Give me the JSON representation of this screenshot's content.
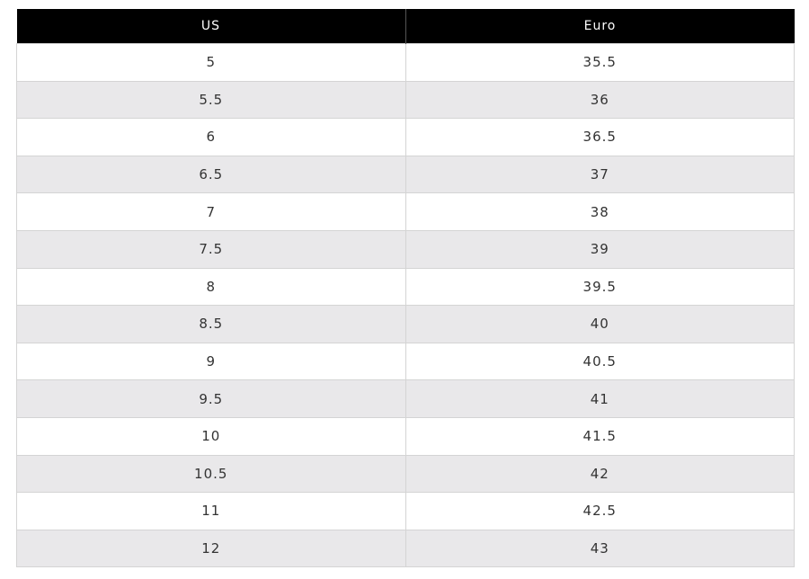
{
  "table": {
    "header": [
      "US",
      "Euro"
    ],
    "rows": [
      [
        "5",
        "35.5"
      ],
      [
        "5.5",
        "36"
      ],
      [
        "6",
        "36.5"
      ],
      [
        "6.5",
        "37"
      ],
      [
        "7",
        "38"
      ],
      [
        "7.5",
        "39"
      ],
      [
        "8",
        "39.5"
      ],
      [
        "8.5",
        "40"
      ],
      [
        "9",
        "40.5"
      ],
      [
        "9.5",
        "41"
      ],
      [
        "10",
        "41.5"
      ],
      [
        "10.5",
        "42"
      ],
      [
        "11",
        "42.5"
      ],
      [
        "12",
        "43"
      ]
    ]
  }
}
